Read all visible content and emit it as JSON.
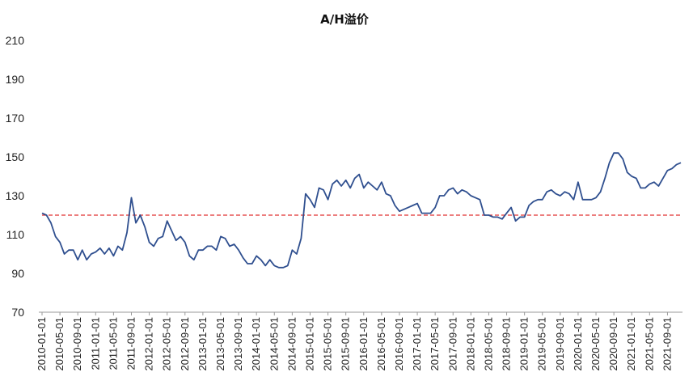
{
  "chart_data": {
    "type": "line",
    "title": "A/H溢价",
    "xlabel": "",
    "ylabel": "",
    "ylim": [
      70,
      210
    ],
    "yticks": [
      70,
      90,
      110,
      130,
      150,
      170,
      190,
      210
    ],
    "grid": false,
    "legend": "none",
    "xtick_labels": [
      "2010-01-01",
      "2010-05-01",
      "2010-09-01",
      "2011-01-01",
      "2011-05-01",
      "2011-09-01",
      "2012-01-01",
      "2012-05-01",
      "2012-09-01",
      "2013-01-01",
      "2013-05-01",
      "2013-09-01",
      "2014-01-01",
      "2014-05-01",
      "2014-09-01",
      "2015-01-01",
      "2015-05-01",
      "2015-09-01",
      "2016-01-01",
      "2016-05-01",
      "2016-09-01",
      "2017-01-01",
      "2017-05-01",
      "2017-09-01",
      "2018-01-01",
      "2018-05-01",
      "2018-09-01",
      "2019-01-01",
      "2019-05-01",
      "2019-09-01",
      "2020-01-01",
      "2020-05-01",
      "2020-09-01",
      "2021-01-01",
      "2021-05-01",
      "2021-09-01"
    ],
    "reference_line": {
      "value": 120,
      "style": "dashed",
      "color": "#e03030"
    },
    "series": [
      {
        "color": "#2f4f8f",
        "x_start": "2010-01",
        "frequency": "monthly",
        "values": [
          121,
          120,
          116,
          109,
          106,
          100,
          102,
          102,
          97,
          102,
          97,
          100,
          101,
          103,
          100,
          103,
          99,
          104,
          102,
          111,
          129,
          116,
          120,
          114,
          106,
          104,
          108,
          109,
          117,
          112,
          107,
          109,
          106,
          99,
          97,
          102,
          102,
          104,
          104,
          102,
          109,
          108,
          104,
          105,
          102,
          98,
          95,
          95,
          99,
          97,
          94,
          97,
          94,
          93,
          93,
          94,
          102,
          100,
          108,
          131,
          128,
          124,
          134,
          133,
          128,
          136,
          138,
          135,
          138,
          134,
          139,
          141,
          134,
          137,
          135,
          133,
          137,
          131,
          130,
          125,
          122,
          123,
          124,
          125,
          126,
          121,
          121,
          121,
          124,
          130,
          130,
          133,
          134,
          131,
          133,
          132,
          130,
          129,
          128,
          120,
          120,
          119,
          119,
          118,
          121,
          124,
          117,
          119,
          119,
          125,
          127,
          128,
          128,
          132,
          133,
          131,
          130,
          132,
          131,
          128,
          137,
          128,
          128,
          128,
          129,
          132,
          139,
          147,
          152,
          152,
          149,
          142,
          140,
          139,
          134,
          134,
          136,
          137,
          135,
          139,
          143,
          144,
          146,
          147
        ]
      }
    ]
  }
}
